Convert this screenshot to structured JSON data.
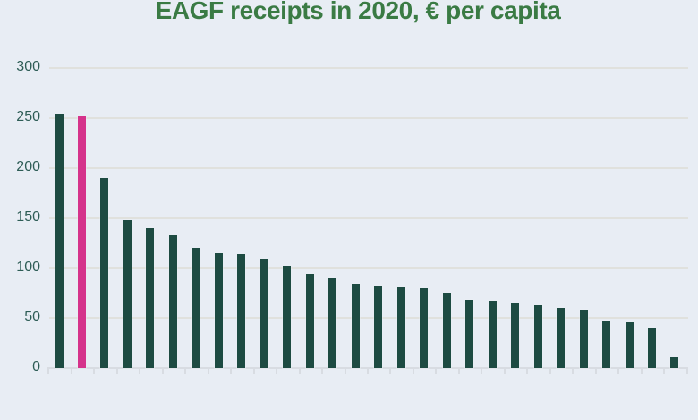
{
  "title": "EAGF receipts in 2020, € per capita",
  "colors": {
    "background": "#e8edf4",
    "bar": "#1d4b42",
    "highlight_bar": "#d5338b",
    "title_text": "#3a7b44",
    "axis_label_text": "#2e5d56",
    "gridline": "#e0e1dd",
    "axis_line": "#d8dce2"
  },
  "chart_data": {
    "type": "bar",
    "title": "EAGF receipts in 2020, € per capita",
    "values": [
      254,
      252,
      190,
      148,
      140,
      133,
      120,
      115,
      114,
      109,
      102,
      94,
      90,
      84,
      82,
      81,
      80,
      75,
      68,
      67,
      65,
      63,
      60,
      58,
      47,
      46,
      40,
      11
    ],
    "bar_count": 28,
    "highlight_index": 1,
    "y_ticks": [
      0,
      50,
      100,
      150,
      200,
      250,
      300
    ],
    "ylim": [
      0,
      300
    ],
    "xlabel": "",
    "ylabel": "",
    "x_tick_labels_visible": false,
    "grid": true,
    "legend": "none"
  }
}
